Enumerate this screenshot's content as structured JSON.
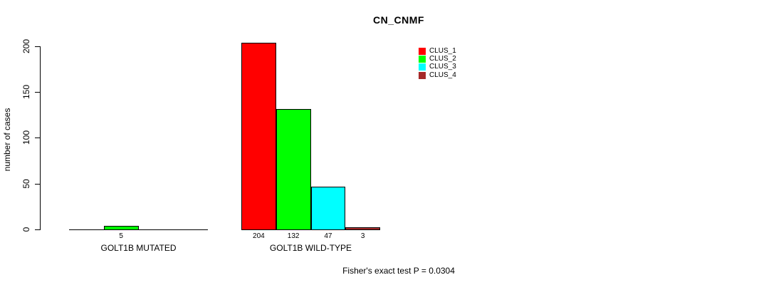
{
  "chart_data": {
    "type": "bar",
    "title": "CN_CNMF",
    "ylabel": "number of cases",
    "xlabel": "",
    "yticks": [
      0,
      50,
      100,
      150,
      200
    ],
    "ylim": [
      0,
      205
    ],
    "grid": false,
    "legend_position": "top-right",
    "categories": [
      "GOLT1B MUTATED",
      "GOLT1B WILD-TYPE"
    ],
    "series": [
      {
        "name": "CLUS_1",
        "color": "#FF0000",
        "values": [
          0,
          204
        ]
      },
      {
        "name": "CLUS_2",
        "color": "#00FF00",
        "values": [
          5,
          132
        ]
      },
      {
        "name": "CLUS_3",
        "color": "#00FFFF",
        "values": [
          0,
          47
        ]
      },
      {
        "name": "CLUS_4",
        "color": "#A52A2A",
        "values": [
          0,
          3
        ]
      }
    ],
    "bar_value_labels": [
      [
        "",
        "5",
        "",
        ""
      ],
      [
        "204",
        "132",
        "47",
        "3"
      ]
    ],
    "annotation": "Fisher's exact test P = 0.0304"
  }
}
